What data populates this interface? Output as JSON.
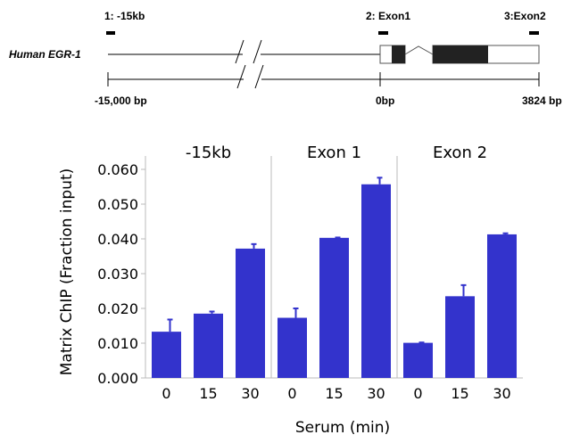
{
  "diagram": {
    "gene_label": "Human EGR-1",
    "site_labels": [
      "1: -15kb",
      "2: Exon1",
      "3:Exon2"
    ],
    "scale_labels": [
      "-15,000  bp",
      "0bp",
      "3824 bp"
    ]
  },
  "chart_data": {
    "type": "bar",
    "ylabel": "Matrix ChIP (Fraction input)",
    "xlabel": "Serum (min)",
    "ylim": [
      0,
      0.06
    ],
    "yticks": [
      "0.000",
      "0.010",
      "0.020",
      "0.030",
      "0.040",
      "0.050",
      "0.060"
    ],
    "categories": [
      "0",
      "15",
      "30"
    ],
    "bar_color": "#3333cc",
    "panels": [
      {
        "title": "-15kb",
        "values": [
          0.0133,
          0.0185,
          0.0372
        ],
        "errors": [
          0.0035,
          0.0006,
          0.0013
        ]
      },
      {
        "title": "Exon 1",
        "values": [
          0.0173,
          0.0403,
          0.0557
        ],
        "errors": [
          0.0027,
          0.0001,
          0.0019
        ]
      },
      {
        "title": "Exon 2",
        "values": [
          0.0101,
          0.0235,
          0.0413
        ],
        "errors": [
          0.0001,
          0.0032,
          0.0003
        ]
      }
    ]
  }
}
